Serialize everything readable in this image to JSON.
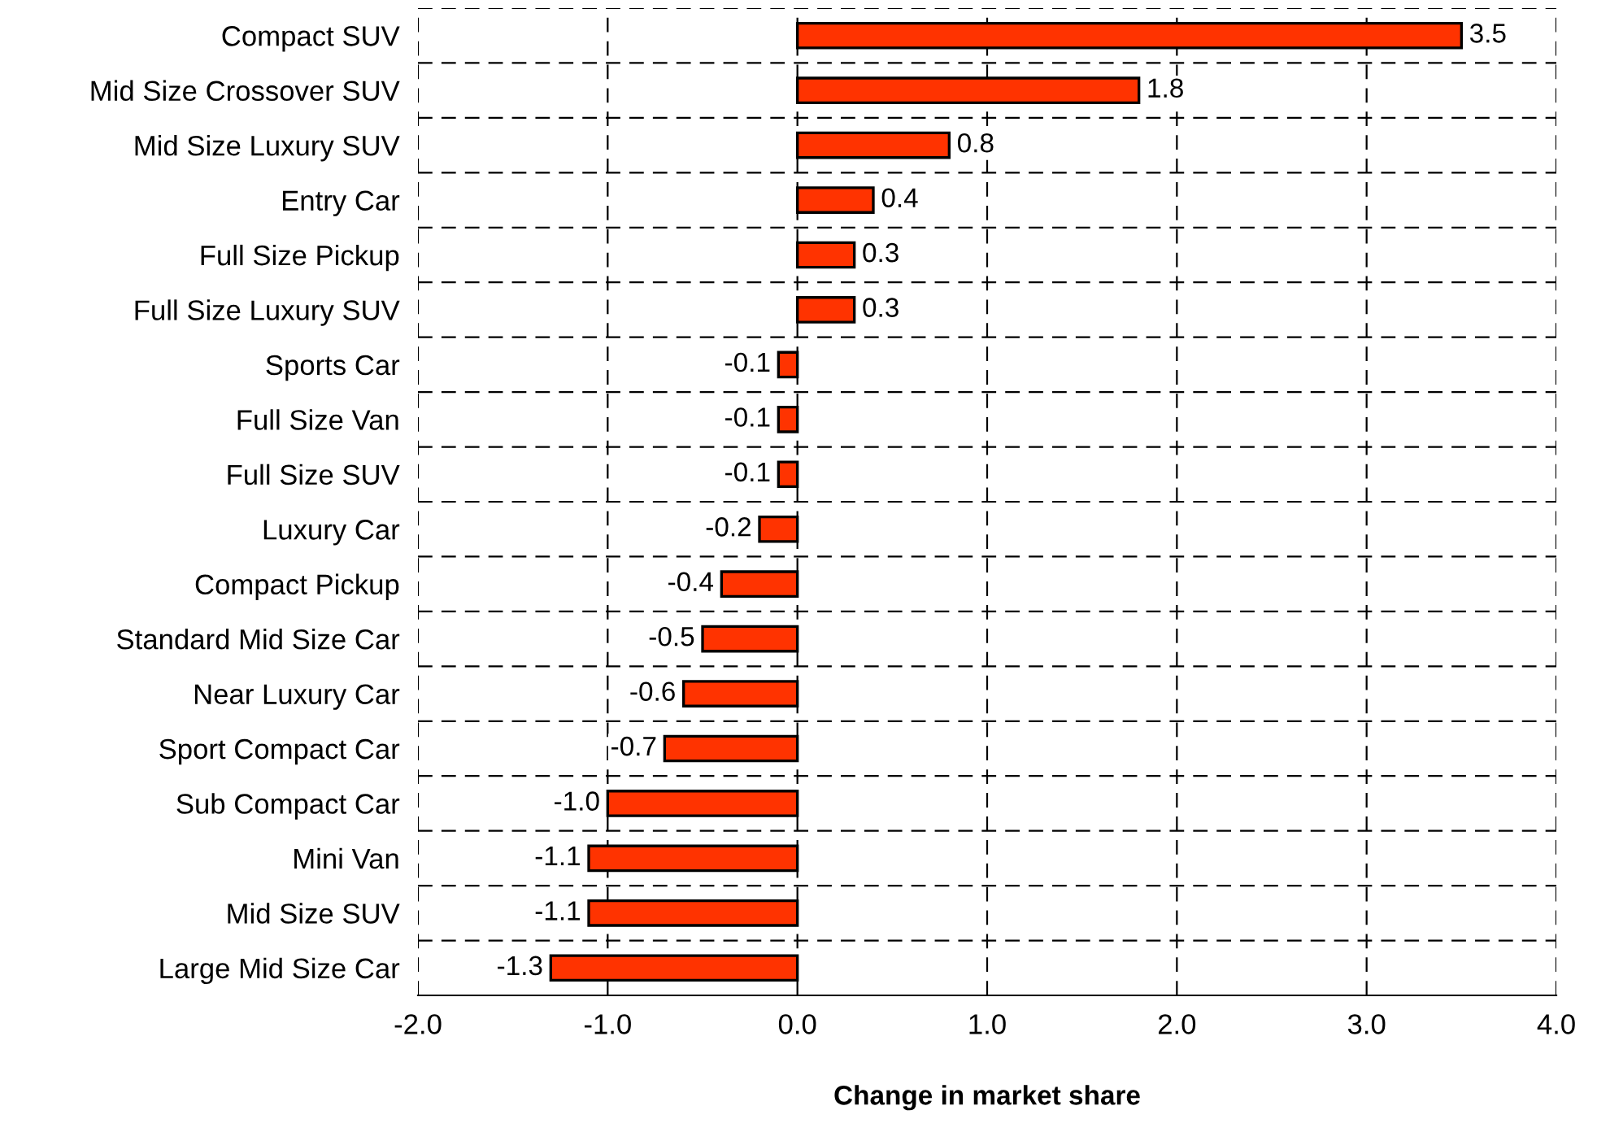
{
  "chart_data": {
    "type": "bar",
    "orientation": "horizontal",
    "xlabel": "Change in market share",
    "categories": [
      "Compact SUV",
      "Mid Size Crossover SUV",
      "Mid Size Luxury SUV",
      "Entry Car",
      "Full Size Pickup",
      "Full Size Luxury SUV",
      "Sports Car",
      "Full Size Van",
      "Full Size SUV",
      "Luxury Car",
      "Compact Pickup",
      "Standard Mid Size Car",
      "Near Luxury Car",
      "Sport Compact Car",
      "Sub Compact Car",
      "Mini Van",
      "Mid Size SUV",
      "Large Mid Size Car"
    ],
    "values": [
      3.5,
      1.8,
      0.8,
      0.4,
      0.3,
      0.3,
      -0.1,
      -0.1,
      -0.1,
      -0.2,
      -0.4,
      -0.5,
      -0.6,
      -0.7,
      -1.0,
      -1.1,
      -1.1,
      -1.3
    ],
    "value_labels": [
      "3.5",
      "1.8",
      "0.8",
      "0.4",
      "0.3",
      "0.3",
      "-0.1",
      "-0.1",
      "-0.1",
      "-0.2",
      "-0.4",
      "-0.5",
      "-0.6",
      "-0.7",
      "-1.0",
      "-1.1",
      "-1.1",
      "-1.3"
    ],
    "color": "#ff3300",
    "xlim": [
      -2,
      4
    ],
    "xticks": [
      {
        "value": -2,
        "label": "-2.0"
      },
      {
        "value": -1,
        "label": "-1.0"
      },
      {
        "value": 0,
        "label": "0.0"
      },
      {
        "value": 1,
        "label": "1.0"
      },
      {
        "value": 2,
        "label": "2.0"
      },
      {
        "value": 3,
        "label": "3.0"
      },
      {
        "value": 4,
        "label": "4.0"
      }
    ],
    "grid": true
  }
}
